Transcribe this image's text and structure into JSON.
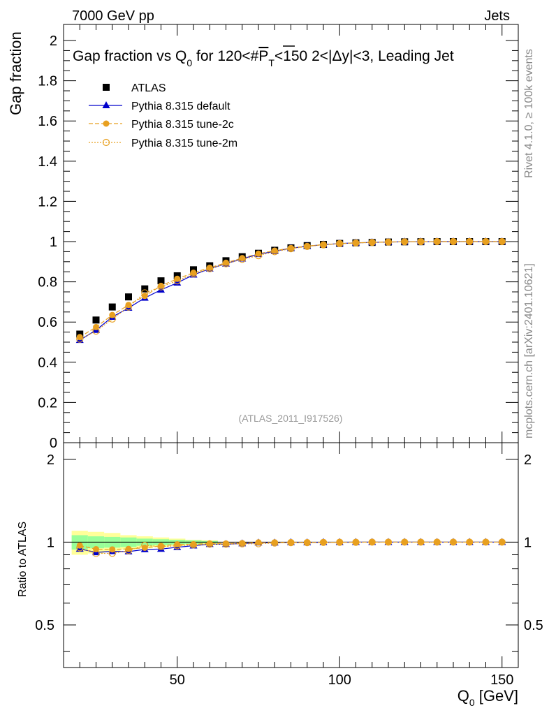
{
  "header": {
    "left": "7000 GeV pp",
    "right": "Jets"
  },
  "side_labels": {
    "top": "Rivet 4.1.0, ≥ 100k events",
    "bottom": "mcplots.cern.ch [arXiv:2401.10621]"
  },
  "watermark": "(ATLAS_2011_I917526)",
  "colors": {
    "data": "#000000",
    "default": "#0000cc",
    "tune2c": "#e8a020",
    "tune2m": "#e8a020",
    "band_inner": "#99ff99",
    "band_outer": "#ffff99"
  },
  "chart_data": {
    "type": "line",
    "title": "Gap fraction vs Q0 for 120<#PT<150  2<|Δy|<3, Leading Jet",
    "title_parts": {
      "a": "Gap fraction vs Q",
      "a_sub": "0",
      "b": " for 120<#",
      "c": "P",
      "c_sub": "T",
      "d": "<150  2<|Δy|<3, Leading Jet"
    },
    "ylabel": "Gap fraction",
    "ratio_ylabel": "Ratio to ATLAS",
    "xlabel": "Q0 [GeV]",
    "xlabel_parts": {
      "main": "Q",
      "sub": "0",
      "unit": " [GeV]"
    },
    "xlim": [
      15,
      155
    ],
    "ylim": [
      0,
      2.08
    ],
    "ratio_ylim": [
      0.35,
      2.3
    ],
    "x_ticks": [
      50,
      100,
      150
    ],
    "x_tick_labels": [
      "50",
      "100",
      "150"
    ],
    "y_ticks": [
      0,
      0.2,
      0.4,
      0.6,
      0.8,
      1,
      1.2,
      1.4,
      1.6,
      1.8,
      2
    ],
    "y_tick_labels": [
      "0",
      "0.2",
      "0.4",
      "0.6",
      "0.8",
      "1",
      "1.2",
      "1.4",
      "1.6",
      "1.8",
      "2"
    ],
    "ratio_ticks": [
      0.5,
      1,
      2
    ],
    "ratio_tick_labels": [
      "0.5",
      "1",
      "2"
    ],
    "x": [
      20,
      25,
      30,
      35,
      40,
      45,
      50,
      55,
      60,
      65,
      70,
      75,
      80,
      85,
      90,
      95,
      100,
      105,
      110,
      115,
      120,
      125,
      130,
      135,
      140,
      145,
      150
    ],
    "series": [
      {
        "name": "ATLAS",
        "key": "data",
        "values": [
          0.54,
          0.61,
          0.675,
          0.725,
          0.765,
          0.805,
          0.83,
          0.86,
          0.88,
          0.905,
          0.925,
          0.942,
          0.957,
          0.969,
          0.98,
          0.986,
          0.991,
          0.994,
          0.996,
          0.998,
          0.999,
          0.9995,
          1.0,
          1.0,
          1.0,
          1.0,
          1.0
        ]
      },
      {
        "name": "Pythia 8.315 default",
        "key": "default",
        "values": [
          0.51,
          0.56,
          0.625,
          0.67,
          0.72,
          0.76,
          0.795,
          0.835,
          0.865,
          0.89,
          0.915,
          0.937,
          0.952,
          0.967,
          0.977,
          0.985,
          0.99,
          0.994,
          0.996,
          0.998,
          0.999,
          0.9995,
          1.0,
          1.0,
          1.0,
          1.0,
          1.0
        ],
        "ratio": [
          0.945,
          0.918,
          0.926,
          0.924,
          0.941,
          0.944,
          0.958,
          0.971,
          0.983,
          0.983,
          0.989,
          0.995,
          0.995,
          0.998,
          0.997,
          0.999,
          0.999,
          1.0,
          1.0,
          1.0,
          1.0,
          1.0,
          1.0,
          1.0,
          1.0,
          1.0,
          1.0
        ]
      },
      {
        "name": "Pythia 8.315 tune-2c",
        "key": "tune2c",
        "values": [
          0.525,
          0.575,
          0.635,
          0.685,
          0.73,
          0.78,
          0.815,
          0.845,
          0.87,
          0.895,
          0.918,
          0.94,
          0.955,
          0.968,
          0.978,
          0.985,
          0.99,
          0.994,
          0.996,
          0.998,
          0.999,
          0.9995,
          1.0,
          1.0,
          1.0,
          1.0,
          1.0
        ],
        "ratio": [
          0.972,
          0.943,
          0.941,
          0.945,
          0.954,
          0.969,
          0.982,
          0.983,
          0.989,
          0.989,
          0.992,
          0.998,
          0.998,
          0.999,
          0.998,
          0.999,
          0.999,
          1.0,
          1.0,
          1.0,
          1.0,
          1.0,
          1.0,
          1.0,
          1.0,
          1.0,
          1.0
        ]
      },
      {
        "name": "Pythia 8.315 tune-2m",
        "key": "tune2m",
        "values": [
          0.515,
          0.555,
          0.615,
          0.675,
          0.745,
          0.775,
          0.805,
          0.84,
          0.865,
          0.89,
          0.912,
          0.93,
          0.95,
          0.965,
          0.976,
          0.984,
          0.99,
          0.993,
          0.996,
          0.998,
          0.999,
          0.9995,
          1.0,
          1.0,
          1.0,
          1.0,
          1.0
        ],
        "ratio": [
          0.954,
          0.91,
          0.911,
          0.931,
          0.974,
          0.963,
          0.97,
          0.977,
          0.983,
          0.983,
          0.986,
          0.987,
          0.993,
          0.996,
          0.996,
          0.998,
          0.999,
          0.999,
          1.0,
          1.0,
          1.0,
          1.0,
          1.0,
          1.0,
          1.0,
          1.0,
          1.0
        ]
      }
    ],
    "band": {
      "x_edges": [
        17.5,
        22.5,
        27.5,
        32.5,
        37.5,
        42.5,
        47.5,
        52.5,
        57.5,
        62.5
      ],
      "inner_half": [
        0.06,
        0.05,
        0.045,
        0.04,
        0.03,
        0.025,
        0.02,
        0.015,
        0.01
      ],
      "outer_half": [
        0.1,
        0.09,
        0.08,
        0.06,
        0.05,
        0.04,
        0.03,
        0.02,
        0.015
      ]
    }
  }
}
